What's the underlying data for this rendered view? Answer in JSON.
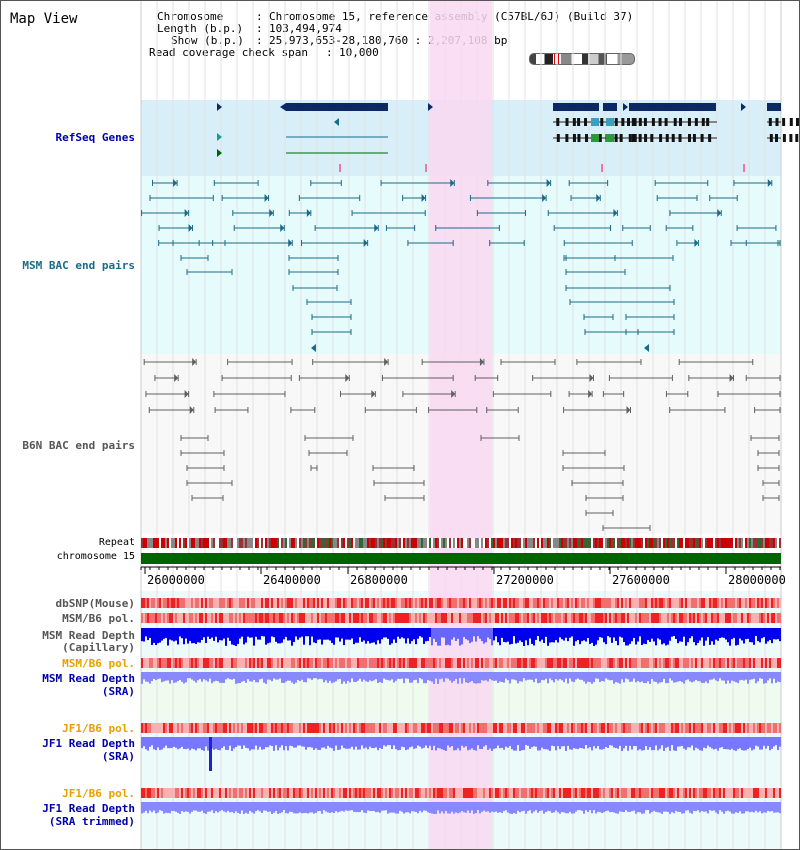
{
  "panel": {
    "title": "Map View"
  },
  "info": {
    "chromosome_label": "Chromosome",
    "chromosome_value": "Chromosome 15, reference assembly (C57BL/6J) (Build 37)",
    "length_label": "Length (b.p.)",
    "length_value": "103,494,974",
    "show_label": "Show (b.p.)",
    "show_value": "25,973,653-28,180,760 : 2,207,108 bp",
    "span_label": "Read coverage check span",
    "span_value": "10,000"
  },
  "tracks": {
    "refseq": "RefSeq Genes",
    "msm_bac": "MSM BAC end pairs",
    "b6n_bac": "B6N BAC end pairs",
    "repeat": "Repeat",
    "chromosome": "chromosome 15",
    "dbsnp": "dbSNP(Mouse)",
    "msm_pol_1": "MSM/B6 pol.",
    "msm_depth_cap_1": "MSM Read Depth",
    "msm_depth_cap_2": "(Capillary)",
    "msm_pol_2": "MSM/B6 pol.",
    "msm_depth_sra_1": "MSM Read Depth",
    "msm_depth_sra_2": "(SRA)",
    "jf1_pol_1": "JF1/B6 pol.",
    "jf1_depth_sra_1": "JF1 Read Depth",
    "jf1_depth_sra_2": "(SRA)",
    "jf1_pol_2": "JF1/B6 pol.",
    "jf1_depth_trim_1": "JF1 Read Depth",
    "jf1_depth_trim_2": "(SRA trimmed)"
  },
  "axis": {
    "ticks": [
      "26000000",
      "26400000",
      "26800000",
      "27200000",
      "27600000",
      "28000000"
    ]
  },
  "colors": {
    "highlight": "#f9d8f1",
    "refseq_bg": "#d8eef9",
    "msm_bg": "#e6fbfb",
    "gene_dark": "#0b2a63",
    "msm_bac": "#1a6b8a",
    "b6n_bac": "#606060",
    "chrom_green": "#006400",
    "depth_dark": "#0000ee",
    "depth_light": "#7777ff",
    "pol_red": "#ee3333",
    "label_blue": "#0000aa",
    "label_teal": "#1a6b8a",
    "label_gray": "#555555",
    "label_orange": "#e8a000"
  }
}
